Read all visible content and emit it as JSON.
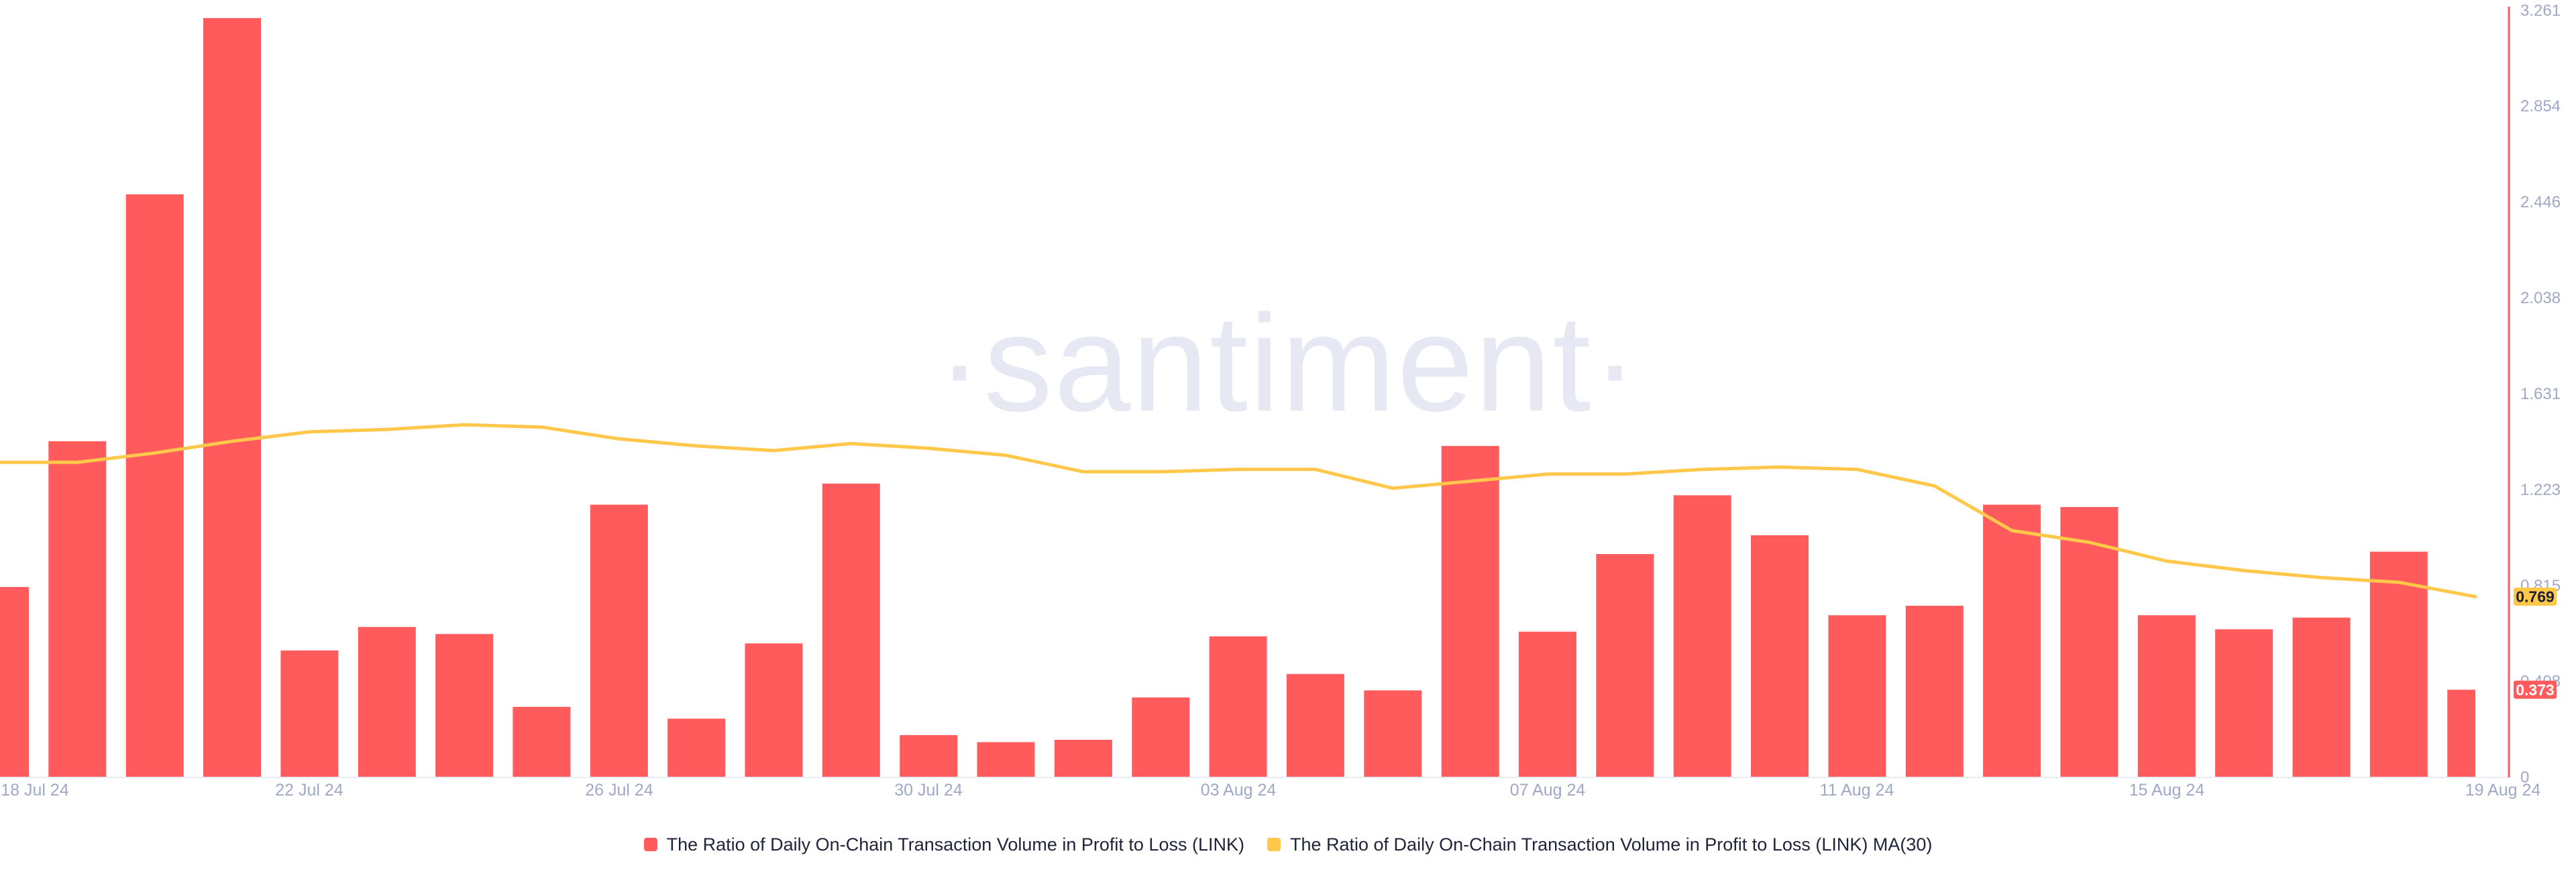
{
  "watermark": {
    "text": "·santiment·"
  },
  "legend": {
    "items": [
      {
        "label": "The Ratio of Daily On-Chain Transaction Volume in Profit to Loss (LINK)",
        "color": "#FF5B5C"
      },
      {
        "label": "The Ratio of Daily On-Chain Transaction Volume in Profit to Loss (LINK) MA(30)",
        "color": "#FFC84A"
      }
    ]
  },
  "chart_data": {
    "type": "bar",
    "title": "",
    "xlabel": "",
    "ylabel": "",
    "grid": false,
    "legend_position": "bottom",
    "ylim": [
      0,
      3.261
    ],
    "x": [
      "18 Jul 24",
      "19 Jul 24",
      "20 Jul 24",
      "21 Jul 24",
      "22 Jul 24",
      "23 Jul 24",
      "24 Jul 24",
      "25 Jul 24",
      "26 Jul 24",
      "27 Jul 24",
      "28 Jul 24",
      "29 Jul 24",
      "30 Jul 24",
      "31 Jul 24",
      "01 Aug 24",
      "02 Aug 24",
      "03 Aug 24",
      "04 Aug 24",
      "05 Aug 24",
      "06 Aug 24",
      "07 Aug 24",
      "08 Aug 24",
      "09 Aug 24",
      "10 Aug 24",
      "11 Aug 24",
      "12 Aug 24",
      "13 Aug 24",
      "14 Aug 24",
      "15 Aug 24",
      "16 Aug 24",
      "17 Aug 24",
      "18 Aug 24",
      "19 Aug 24"
    ],
    "x_tick_labels": [
      "18 Jul 24",
      "22 Jul 24",
      "26 Jul 24",
      "30 Jul 24",
      "03 Aug 24",
      "07 Aug 24",
      "11 Aug 24",
      "15 Aug 24",
      "19 Aug 24"
    ],
    "y_ticks": [
      "3.261",
      "2.854",
      "2.446",
      "2.038",
      "1.631",
      "1.223",
      "0.815",
      "0.408",
      "0"
    ],
    "series": [
      {
        "name": "The Ratio of Daily On-Chain Transaction Volume in Profit to Loss (LINK)",
        "type": "bar",
        "color": "#FF5B5C",
        "values": [
          0.81,
          1.43,
          2.48,
          3.23,
          0.54,
          0.64,
          0.61,
          0.3,
          1.16,
          0.25,
          0.57,
          1.25,
          0.18,
          0.15,
          0.16,
          0.34,
          0.6,
          0.44,
          0.37,
          1.41,
          0.62,
          0.95,
          1.2,
          1.03,
          0.69,
          0.73,
          1.16,
          1.15,
          0.69,
          0.63,
          0.68,
          0.96,
          0.373
        ]
      },
      {
        "name": "The Ratio of Daily On-Chain Transaction Volume in Profit to Loss (LINK) MA(30)",
        "type": "line",
        "color": "#FFC84A",
        "values": [
          1.34,
          1.34,
          1.38,
          1.43,
          1.47,
          1.48,
          1.5,
          1.49,
          1.44,
          1.41,
          1.39,
          1.42,
          1.4,
          1.37,
          1.3,
          1.3,
          1.31,
          1.31,
          1.23,
          1.26,
          1.29,
          1.29,
          1.31,
          1.32,
          1.31,
          1.24,
          1.05,
          1.0,
          0.92,
          0.88,
          0.85,
          0.83,
          0.769
        ]
      }
    ],
    "badges": {
      "bar_last": "0.373",
      "ma_last": "0.769"
    },
    "colors": {
      "axis": "#FF5B5C",
      "baseline": "#E8EBF4",
      "tick_text": "#9FA9C6",
      "badge_bar_bg": "#FF5B5C",
      "badge_bar_text": "#FFFFFF",
      "badge_ma_bg": "#FFC84A",
      "badge_ma_text": "#1B1F30",
      "watermark": "#E6E8F3",
      "legend_text": "#20243A"
    }
  }
}
